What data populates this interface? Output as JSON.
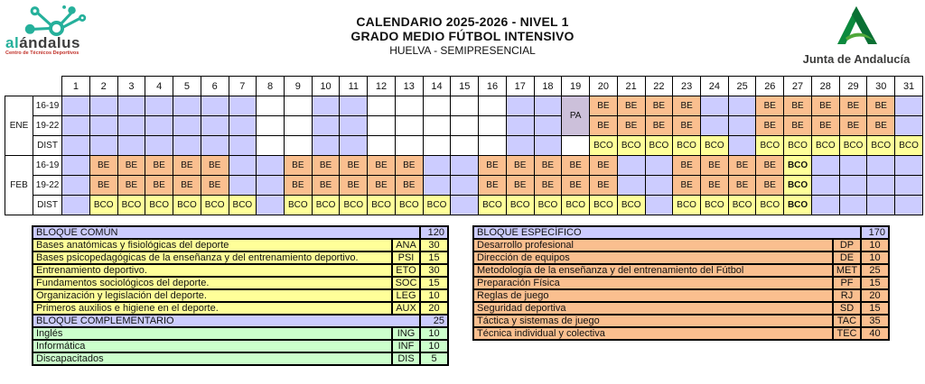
{
  "page": {
    "title_line1": "CALENDARIO 2025-2026 - NIVEL 1",
    "title_line2": "GRADO MEDIO FÚTBOL INTENSIVO",
    "title_line3": "HUELVA - SEMIPRESENCIAL"
  },
  "logos": {
    "alandalus": {
      "part1": "al",
      "part2": "ándalus",
      "subtitle": "Centro de Técnicos Deportivos"
    },
    "junta": {
      "label": "Junta de Andalucía"
    }
  },
  "colors": {
    "holiday_lavender": "#CCCCFF",
    "be_orange": "#FABF8F",
    "bco_yellow": "#FFFF99",
    "pa_purple": "#CCC0DA",
    "common_yellow": "#FFFF99",
    "complementary_green": "#CCFFCC",
    "specific_orange": "#FABF8F",
    "section_header_lavender": "#CCCCFF",
    "logo_teal": "#25B09B",
    "junta_green": "#0C8A3E"
  },
  "calendar": {
    "day_numbers": [
      1,
      2,
      3,
      4,
      5,
      6,
      7,
      8,
      9,
      10,
      11,
      12,
      13,
      14,
      15,
      16,
      17,
      18,
      19,
      20,
      21,
      22,
      23,
      24,
      25,
      26,
      27,
      28,
      29,
      30,
      31
    ],
    "cell_labels": {
      "be": "BE",
      "bco": "BCO",
      "pa": "PA"
    },
    "months": [
      {
        "label": "ENE",
        "week_thick_after": [
          4,
          11,
          18,
          25
        ],
        "rows": [
          {
            "label": "16-19",
            "cells": [
              "H",
              "H",
              "H",
              "H",
              "H",
              "H",
              "H",
              "",
              "",
              "H",
              "H",
              "",
              "",
              "",
              "",
              "",
              "H",
              "H",
              "PA",
              "BE",
              "BE",
              "BE",
              "BE",
              "H",
              "H",
              "BE",
              "BE",
              "BE",
              "BE",
              "BE",
              "H"
            ]
          },
          {
            "label": "19-22",
            "cells": [
              "H",
              "H",
              "H",
              "H",
              "H",
              "H",
              "H",
              "",
              "",
              "H",
              "H",
              "",
              "",
              "",
              "",
              "",
              "H",
              "H",
              "^",
              "BE",
              "BE",
              "BE",
              "BE",
              "H",
              "H",
              "BE",
              "BE",
              "BE",
              "BE",
              "BE",
              "H"
            ]
          },
          {
            "label": "DIST",
            "cells": [
              "H",
              "H",
              "H",
              "H",
              "H",
              "H",
              "H",
              "",
              "",
              "H",
              "H",
              "",
              "",
              "",
              "",
              "",
              "H",
              "H",
              "",
              "BCO",
              "BCO",
              "BCO",
              "BCO",
              "BCO",
              "H",
              "BCO",
              "BCO",
              "BCO",
              "BCO",
              "BCO",
              "BCO"
            ]
          }
        ]
      },
      {
        "label": "FEB",
        "week_thick_after": [
          1,
          8,
          15,
          22
        ],
        "rows": [
          {
            "label": "16-19",
            "cells": [
              "H",
              "BE",
              "BE",
              "BE",
              "BE",
              "BE",
              "H",
              "H",
              "BE",
              "BE",
              "BE",
              "BE",
              "BE",
              "H",
              "H",
              "BE",
              "BE",
              "BE",
              "BE",
              "BE",
              "H",
              "H",
              "BE",
              "BE",
              "BE",
              "BE",
              "BCO!",
              "H",
              "H",
              "H",
              "H"
            ]
          },
          {
            "label": "19-22",
            "cells": [
              "H",
              "BE",
              "BE",
              "BE",
              "BE",
              "BE",
              "H",
              "H",
              "BE",
              "BE",
              "BE",
              "BE",
              "BE",
              "H",
              "H",
              "BE",
              "BE",
              "BE",
              "BE",
              "BE",
              "H",
              "H",
              "BE",
              "BE",
              "BE",
              "BE",
              "BCO!",
              "H",
              "H",
              "H",
              "H"
            ]
          },
          {
            "label": "DIST",
            "cells": [
              "H",
              "BCO",
              "BCO",
              "BCO",
              "BCO",
              "BCO",
              "BCO",
              "H",
              "BCO",
              "BCO",
              "BCO",
              "BCO",
              "BCO",
              "BCO",
              "H",
              "BCO",
              "BCO",
              "BCO",
              "BCO",
              "BCO",
              "BCO",
              "H",
              "BCO",
              "BCO",
              "BCO",
              "BCO",
              "BCO!",
              "H",
              "H",
              "H",
              "H"
            ]
          }
        ]
      }
    ]
  },
  "blocks_left": {
    "sections": [
      {
        "title": "BLOQUE COMÚN",
        "hours": "120",
        "row_class": "yellow",
        "rows": [
          [
            "Bases anatómicas y fisiológicas del deporte",
            "ANA",
            "30"
          ],
          [
            "Bases psicopedagógicas de la enseñanza y del entrenamiento deportivo.",
            "PSI",
            "15"
          ],
          [
            "Entrenamiento deportivo.",
            "ETO",
            "30"
          ],
          [
            "Fundamentos sociológicos del deporte.",
            "SOC",
            "15"
          ],
          [
            "Organización y legislación del deporte.",
            "LEG",
            "10"
          ],
          [
            "Primeros auxilios e higiene en el deporte.",
            "AUX",
            "20"
          ]
        ]
      },
      {
        "title": "BLOQUE COMPLEMENTARIO",
        "hours": "25",
        "row_class": "green",
        "rows": [
          [
            "Inglés",
            "ING",
            "10"
          ],
          [
            "Informática",
            "INF",
            "10"
          ],
          [
            "Discapacitados",
            "DIS",
            "5"
          ]
        ]
      }
    ]
  },
  "blocks_right": {
    "sections": [
      {
        "title": "BLOQUE ESPECÍFICO",
        "hours": "170",
        "row_class": "orange",
        "rows": [
          [
            "Desarrollo profesional",
            "DP",
            "10"
          ],
          [
            "Dirección de equipos",
            "DE",
            "10"
          ],
          [
            "Metodología de la enseñanza y del entrenamiento del Fútbol",
            "MET",
            "25"
          ],
          [
            "Preparación Física",
            "PF",
            "15"
          ],
          [
            "Reglas de juego",
            "RJ",
            "20"
          ],
          [
            "Seguridad deportiva",
            "SD",
            "15"
          ],
          [
            "Táctica y sistemas de juego",
            "TAC",
            "35"
          ],
          [
            "Técnica individual y colectiva",
            "TEC",
            "40"
          ]
        ]
      }
    ]
  }
}
